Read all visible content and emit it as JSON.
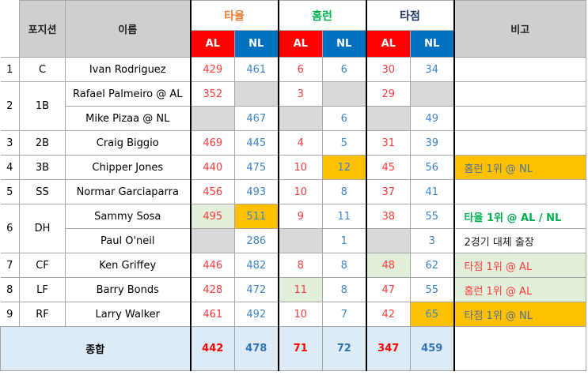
{
  "header": {
    "position": "포지션",
    "name": "이름",
    "groups": [
      {
        "label": "타율",
        "color": "#ed7d31"
      },
      {
        "label": "홈런",
        "color": "#00b050"
      },
      {
        "label": "타점",
        "color": "#1f3864"
      }
    ],
    "al": "AL",
    "nl": "NL",
    "remark": "비고"
  },
  "rows": [
    {
      "no": "1",
      "pos": "C",
      "span": 1,
      "name": "Ivan Rodriguez",
      "cells": [
        [
          "429",
          ""
        ],
        [
          "461",
          ""
        ],
        [
          "6",
          ""
        ],
        [
          "6",
          ""
        ],
        [
          "30",
          ""
        ],
        [
          "34",
          ""
        ]
      ],
      "remark": "",
      "remark_bg": "",
      "remark_color": ""
    },
    {
      "no": "2",
      "pos": "1B",
      "span": 2,
      "name": "Rafael Palmeiro @ AL",
      "cells": [
        [
          "352",
          ""
        ],
        [
          "",
          "gray"
        ],
        [
          "3",
          ""
        ],
        [
          "",
          "gray"
        ],
        [
          "29",
          ""
        ],
        [
          "",
          "gray"
        ]
      ],
      "remark": "",
      "remark_bg": "",
      "remark_color": ""
    },
    {
      "name": "Mike Pizaa @ NL",
      "cells": [
        [
          "",
          "gray"
        ],
        [
          "467",
          ""
        ],
        [
          "",
          "gray"
        ],
        [
          "6",
          ""
        ],
        [
          "",
          "gray"
        ],
        [
          "49",
          ""
        ]
      ],
      "remark": "",
      "remark_bg": "",
      "remark_color": ""
    },
    {
      "no": "3",
      "pos": "2B",
      "span": 1,
      "name": "Craig Biggio",
      "cells": [
        [
          "469",
          ""
        ],
        [
          "445",
          ""
        ],
        [
          "4",
          ""
        ],
        [
          "5",
          ""
        ],
        [
          "31",
          ""
        ],
        [
          "39",
          ""
        ]
      ],
      "remark": "",
      "remark_bg": "",
      "remark_color": ""
    },
    {
      "no": "4",
      "pos": "3B",
      "span": 1,
      "name": "Chipper Jones",
      "cells": [
        [
          "440",
          ""
        ],
        [
          "475",
          ""
        ],
        [
          "10",
          ""
        ],
        [
          "12",
          "orange"
        ],
        [
          "45",
          ""
        ],
        [
          "56",
          ""
        ]
      ],
      "remark": "홈런 1위 @ NL",
      "remark_bg": "orange",
      "remark_color": "#4f7296"
    },
    {
      "no": "5",
      "pos": "SS",
      "span": 1,
      "name": "Normar Garciaparra",
      "cells": [
        [
          "456",
          ""
        ],
        [
          "493",
          ""
        ],
        [
          "10",
          ""
        ],
        [
          "8",
          ""
        ],
        [
          "37",
          ""
        ],
        [
          "41",
          ""
        ]
      ],
      "remark": "",
      "remark_bg": "",
      "remark_color": ""
    },
    {
      "no": "6",
      "pos": "DH",
      "span": 2,
      "name": "Sammy Sosa",
      "cells": [
        [
          "495",
          "green"
        ],
        [
          "511",
          "orange"
        ],
        [
          "9",
          ""
        ],
        [
          "11",
          ""
        ],
        [
          "38",
          ""
        ],
        [
          "55",
          ""
        ]
      ],
      "remark": "타율 1위 @ AL / NL",
      "remark_bg": "",
      "remark_color": "#00b050",
      "remark_bold": true
    },
    {
      "name": "Paul O'neil",
      "cells": [
        [
          "",
          "gray"
        ],
        [
          "286",
          ""
        ],
        [
          "",
          "gray"
        ],
        [
          "1",
          ""
        ],
        [
          "",
          "gray"
        ],
        [
          "3",
          ""
        ]
      ],
      "remark": "2경기 대체 출장",
      "remark_bg": "",
      "remark_color": "#222222"
    },
    {
      "no": "7",
      "pos": "CF",
      "span": 1,
      "name": "Ken Griffey",
      "cells": [
        [
          "446",
          ""
        ],
        [
          "482",
          ""
        ],
        [
          "8",
          ""
        ],
        [
          "8",
          ""
        ],
        [
          "48",
          "green"
        ],
        [
          "62",
          ""
        ]
      ],
      "remark": "타점 1위 @ AL",
      "remark_bg": "green",
      "remark_color": "#ff3b3b"
    },
    {
      "no": "8",
      "pos": "LF",
      "span": 1,
      "name": "Barry Bonds",
      "cells": [
        [
          "428",
          ""
        ],
        [
          "472",
          ""
        ],
        [
          "11",
          "green"
        ],
        [
          "8",
          ""
        ],
        [
          "47",
          ""
        ],
        [
          "55",
          ""
        ]
      ],
      "remark": "홈런 1위 @ AL",
      "remark_bg": "green",
      "remark_color": "#ff3b3b"
    },
    {
      "no": "9",
      "pos": "RF",
      "span": 1,
      "name": "Larry Walker",
      "cells": [
        [
          "461",
          ""
        ],
        [
          "492",
          ""
        ],
        [
          "10",
          ""
        ],
        [
          "7",
          ""
        ],
        [
          "42",
          ""
        ],
        [
          "65",
          "orange"
        ]
      ],
      "remark": "타점 1위 @ NL",
      "remark_bg": "orange",
      "remark_color": "#4f7296"
    }
  ],
  "total": {
    "label": "종합",
    "values": [
      "442",
      "478",
      "71",
      "72",
      "347",
      "459"
    ]
  }
}
